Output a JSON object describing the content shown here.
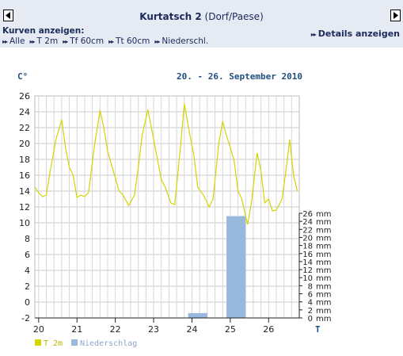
{
  "header": {
    "station_name": "Kurtatsch 2",
    "station_sub": "(Dorf/Paese)",
    "kurven_label": "Kurven anzeigen:",
    "curves": [
      "Alle",
      "T 2m",
      "Tf 60cm",
      "Tt 60cm",
      "Niederschl."
    ],
    "details_label": "Details anzeigen"
  },
  "chart_data": {
    "type": "line",
    "title": "20. - 26. September 2010",
    "ylabel_left": "C°",
    "ylabel_right": "mm",
    "xlabel": "T",
    "categories": [
      "20",
      "21",
      "22",
      "23",
      "24",
      "25",
      "26"
    ],
    "left_axis": {
      "ylim": [
        -2,
        26
      ],
      "ticks": [
        -2,
        0,
        2,
        4,
        6,
        8,
        10,
        12,
        14,
        16,
        18,
        20,
        22,
        24,
        26
      ]
    },
    "right_axis": {
      "ylim": [
        0,
        26
      ],
      "ticks": [
        0,
        2,
        4,
        6,
        8,
        10,
        12,
        14,
        16,
        18,
        20,
        22,
        24,
        26
      ],
      "unit": "mm"
    },
    "xlim": [
      19.9,
      26.8
    ],
    "grid": true,
    "legend_position": "bottom-left",
    "series": [
      {
        "name": "T 2m",
        "kind": "line",
        "color": "#d4d400",
        "x": [
          19.9,
          20.0,
          20.1,
          20.2,
          20.3,
          20.45,
          20.6,
          20.7,
          20.8,
          20.9,
          21.0,
          21.1,
          21.2,
          21.3,
          21.45,
          21.6,
          21.7,
          21.8,
          21.95,
          22.1,
          22.2,
          22.35,
          22.5,
          22.6,
          22.7,
          22.85,
          23.0,
          23.1,
          23.2,
          23.3,
          23.45,
          23.55,
          23.7,
          23.8,
          23.95,
          24.05,
          24.15,
          24.3,
          24.45,
          24.55,
          24.7,
          24.8,
          24.9,
          25.0,
          25.1,
          25.2,
          25.3,
          25.45,
          25.55,
          25.7,
          25.8,
          25.9,
          26.0,
          26.1,
          26.2,
          26.35,
          26.45,
          26.55,
          26.65,
          26.75
        ],
        "y": [
          14.5,
          13.8,
          13.3,
          13.5,
          16.5,
          20.5,
          23.0,
          19.5,
          17.0,
          16.0,
          13.2,
          13.5,
          13.3,
          13.8,
          19.5,
          24.2,
          22.0,
          19.0,
          16.5,
          14.0,
          13.5,
          12.2,
          13.5,
          17.0,
          21.0,
          24.3,
          20.5,
          18.0,
          15.5,
          14.5,
          12.5,
          12.3,
          19.5,
          25.0,
          21.0,
          18.5,
          14.5,
          13.5,
          12.0,
          13.0,
          20.0,
          22.8,
          21.0,
          19.5,
          17.8,
          14.0,
          13.0,
          9.8,
          12.5,
          18.8,
          16.5,
          12.5,
          13.0,
          11.5,
          11.6,
          13.0,
          16.5,
          20.5,
          16.0,
          14.0
        ]
      },
      {
        "name": "Niederschlag",
        "kind": "bar",
        "color": "#99b8dd",
        "axis": "right",
        "bars": [
          {
            "x_start": 23.9,
            "x_end": 24.4,
            "value": 1.2
          },
          {
            "x_start": 24.9,
            "x_end": 25.4,
            "value": 25.3
          }
        ]
      }
    ]
  }
}
